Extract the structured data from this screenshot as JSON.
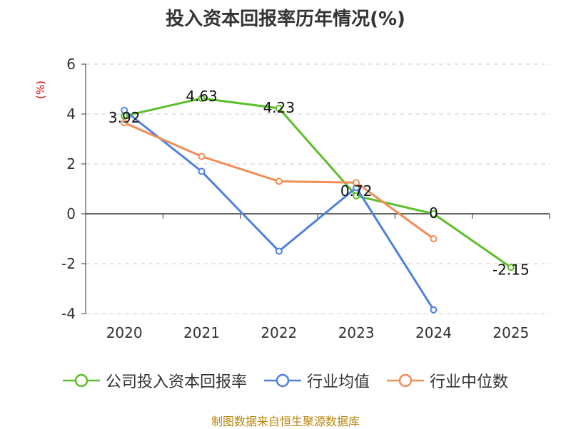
{
  "chart_data": {
    "type": "line",
    "title": "投入资本回报率历年情况(%)",
    "ylabel": "(%)",
    "xlabel": "",
    "categories": [
      "2020",
      "2021",
      "2022",
      "2023",
      "2024",
      "2025"
    ],
    "ylim": [
      -4,
      6
    ],
    "yticks": [
      -4,
      -2,
      0,
      2,
      4,
      6
    ],
    "grid": true,
    "legend_position": "bottom",
    "series": [
      {
        "name": "公司投入资本回报率",
        "color": "#5cbf2a",
        "values": [
          3.92,
          4.63,
          4.23,
          0.72,
          0,
          -2.15
        ],
        "labels": [
          "3.92",
          "4.63",
          "4.23",
          "0.72",
          "0",
          "-2.15"
        ]
      },
      {
        "name": "行业均值",
        "color": "#4f7fdf",
        "values": [
          4.15,
          1.7,
          -1.5,
          1.05,
          -3.85,
          null
        ]
      },
      {
        "name": "行业中位数",
        "color": "#f28c54",
        "values": [
          3.65,
          2.3,
          1.3,
          1.25,
          -1.0,
          null
        ]
      }
    ]
  },
  "source": "制图数据来自恒生聚源数据库"
}
